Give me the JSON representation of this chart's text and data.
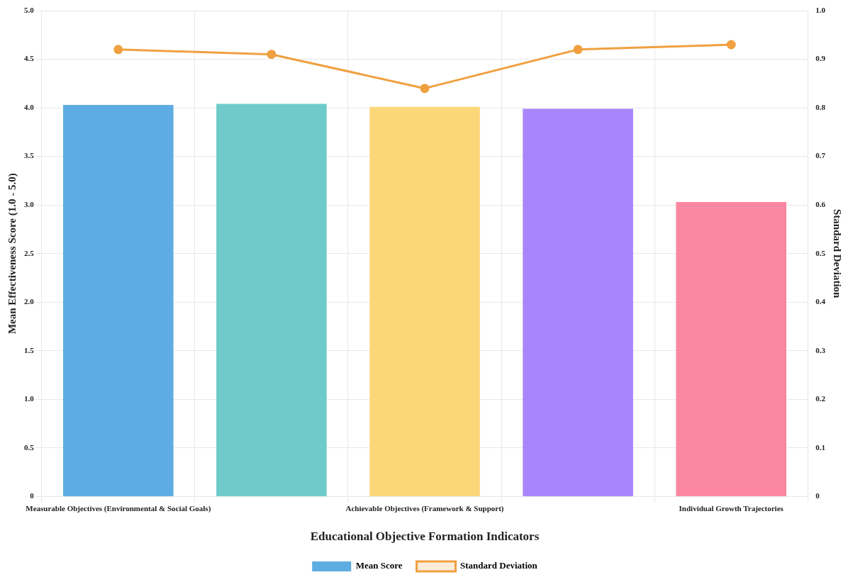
{
  "chart_data": {
    "type": "bar",
    "xlabel": "Educational Objective Formation Indicators",
    "ylabel": "Mean Effectiveness Score (1.0 - 5.0)",
    "y2label": "Standard Deviation",
    "categories": [
      "Measurable Objectives (Environmental & Social Goals)",
      null,
      "Achievable Objectives (Framework & Support)",
      null,
      "Individual Growth Trajectories"
    ],
    "series": [
      {
        "name": "Mean Score",
        "color": "#5dade2",
        "colors": [
          "#5dade2",
          "#6ecbc9",
          "#fcd77a",
          "#a985fb",
          "#fb87a0"
        ],
        "values": [
          4.03,
          4.04,
          4.01,
          3.99,
          3.03
        ]
      },
      {
        "name": "Standard Deviation",
        "type": "line",
        "axis": "y2",
        "color": "#f0a040",
        "marker": "circle",
        "values": [
          0.92,
          0.91,
          0.84,
          0.92,
          0.93
        ]
      }
    ],
    "ylim": [
      0,
      5
    ],
    "yticks": [
      0,
      0.5,
      {
        "value": 1,
        "label": "1.0"
      },
      1.5,
      {
        "value": 2,
        "label": "2.0"
      },
      2.5,
      {
        "value": 3,
        "label": "3.0"
      },
      3.5,
      {
        "value": 4,
        "label": "4.0"
      },
      4.5,
      {
        "value": 5,
        "label": "5.0"
      }
    ],
    "y2lim": [
      0,
      1
    ],
    "y2ticks": [
      0,
      0.1,
      0.2,
      0.3,
      0.4,
      0.5,
      0.6,
      0.7,
      0.8,
      0.9,
      {
        "value": 1,
        "label": "1.0"
      }
    ],
    "grid": true,
    "legend": "bottom"
  }
}
